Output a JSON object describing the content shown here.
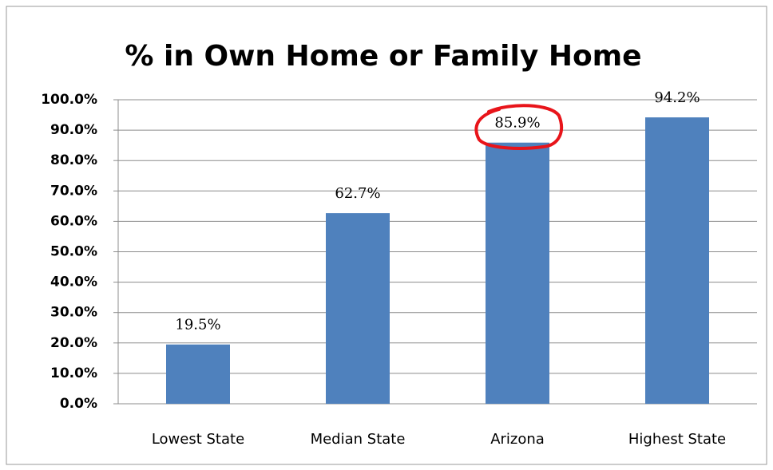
{
  "chart_data": {
    "type": "bar",
    "title": "% in Own Home or Family Home",
    "categories": [
      "Lowest State",
      "Median State",
      "Arizona",
      "Highest State"
    ],
    "values": [
      19.5,
      62.7,
      85.9,
      94.2
    ],
    "value_labels": [
      "19.5%",
      "62.7%",
      "85.9%",
      "94.2%"
    ],
    "color": "#4f81bd",
    "ylim": [
      0,
      100
    ],
    "yticks": [
      {
        "value": 0,
        "label": "0.0%"
      },
      {
        "value": 10,
        "label": "10.0%"
      },
      {
        "value": 20,
        "label": "20.0%"
      },
      {
        "value": 30,
        "label": "30.0%"
      },
      {
        "value": 40,
        "label": "40.0%"
      },
      {
        "value": 50,
        "label": "50.0%"
      },
      {
        "value": 60,
        "label": "60.0%"
      },
      {
        "value": 70,
        "label": "70.0%"
      },
      {
        "value": 80,
        "label": "80.0%"
      },
      {
        "value": 90,
        "label": "90.0%"
      },
      {
        "value": 100,
        "label": "100.0%"
      }
    ],
    "grid": true
  }
}
